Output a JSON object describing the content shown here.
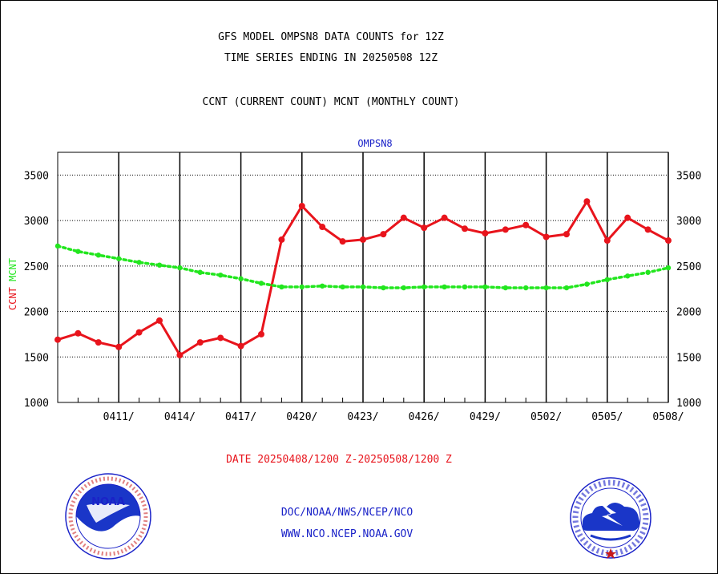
{
  "header": {
    "line1": "GFS MODEL OMPSN8 DATA COUNTS for 12Z",
    "line2": "TIME SERIES ENDING IN 20250508 12Z",
    "line3": "CCNT (CURRENT COUNT) MCNT (MONTHLY COUNT)"
  },
  "footer": {
    "date_range": "DATE 20250408/1200 Z-20250508/1200 Z",
    "org_path": "DOC/NOAA/NWS/NCEP/NCO",
    "website": "WWW.NCO.NCEP.NOAA.GOV"
  },
  "logos": {
    "left": {
      "icon": "noaa-logo-icon",
      "text": "NOAA"
    },
    "right": {
      "icon": "nws-logo-icon"
    }
  },
  "colors": {
    "ccnt": "#e8141c",
    "mcnt": "#22e61e",
    "title": "#1a22c8"
  },
  "chart_data": {
    "type": "line",
    "title": "OMPSN8",
    "ylabel_series": [
      {
        "text": "CCNT",
        "color": "#e8141c"
      },
      {
        "text": "MCNT",
        "color": "#22e61e"
      }
    ],
    "ylim": [
      1000,
      3750
    ],
    "yticks": [
      1000,
      1500,
      2000,
      2500,
      3000,
      3500
    ],
    "x_range": [
      "2025-04-08",
      "2025-05-08"
    ],
    "xticks": [
      {
        "date": "2025-04-11",
        "label": "0411/"
      },
      {
        "date": "2025-04-14",
        "label": "0414/"
      },
      {
        "date": "2025-04-17",
        "label": "0417/"
      },
      {
        "date": "2025-04-20",
        "label": "0420/"
      },
      {
        "date": "2025-04-23",
        "label": "0423/"
      },
      {
        "date": "2025-04-26",
        "label": "0426/"
      },
      {
        "date": "2025-04-29",
        "label": "0429/"
      },
      {
        "date": "2025-05-02",
        "label": "0502/"
      },
      {
        "date": "2025-05-05",
        "label": "0505/"
      },
      {
        "date": "2025-05-08",
        "label": "0508/"
      }
    ],
    "grid": true,
    "x": [
      "2025-04-08",
      "2025-04-09",
      "2025-04-10",
      "2025-04-11",
      "2025-04-12",
      "2025-04-13",
      "2025-04-14",
      "2025-04-15",
      "2025-04-16",
      "2025-04-17",
      "2025-04-18",
      "2025-04-19",
      "2025-04-20",
      "2025-04-21",
      "2025-04-22",
      "2025-04-23",
      "2025-04-24",
      "2025-04-25",
      "2025-04-26",
      "2025-04-27",
      "2025-04-28",
      "2025-04-29",
      "2025-04-30",
      "2025-05-01",
      "2025-05-02",
      "2025-05-03",
      "2025-05-04",
      "2025-05-05",
      "2025-05-06",
      "2025-05-07",
      "2025-05-08"
    ],
    "series": [
      {
        "name": "CCNT",
        "color": "#e8141c",
        "values": [
          1690,
          1760,
          1660,
          1610,
          1770,
          1900,
          1520,
          1660,
          1710,
          1620,
          1750,
          2790,
          3160,
          2930,
          2770,
          2790,
          2850,
          3030,
          2920,
          3030,
          2910,
          2860,
          2900,
          2950,
          2820,
          2850,
          3210,
          2780,
          3030,
          2900,
          2780
        ]
      },
      {
        "name": "MCNT",
        "color": "#22e61e",
        "dotted": true,
        "values": [
          2720,
          2660,
          2620,
          2580,
          2540,
          2510,
          2480,
          2430,
          2400,
          2360,
          2310,
          2270,
          2270,
          2280,
          2270,
          2270,
          2260,
          2260,
          2270,
          2270,
          2270,
          2270,
          2260,
          2260,
          2260,
          2260,
          2300,
          2350,
          2390,
          2430,
          2480
        ]
      }
    ]
  }
}
